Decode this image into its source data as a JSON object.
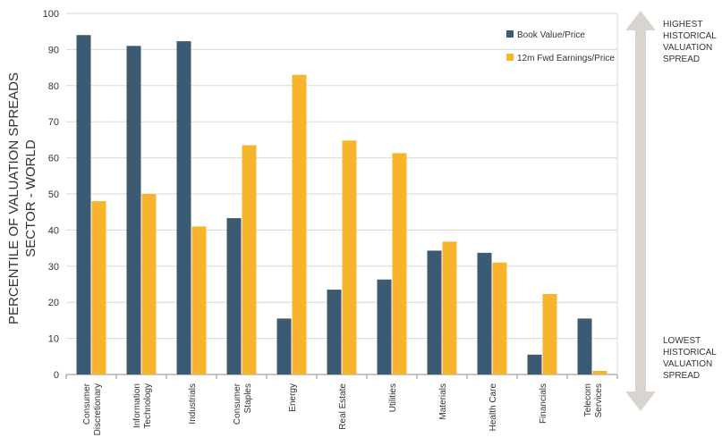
{
  "chart_data": {
    "type": "bar",
    "ylabel": [
      "PERCENTILE OF VALUATION SPREADS",
      "SECTOR - WORLD"
    ],
    "ylim": [
      0,
      100
    ],
    "yticks": [
      0,
      10,
      20,
      30,
      40,
      50,
      60,
      70,
      80,
      90,
      100
    ],
    "grid": true,
    "legend_position": "top-right",
    "categories": [
      [
        "Consumer",
        "Discretionary"
      ],
      [
        "Information",
        "Technology"
      ],
      [
        "Industrials"
      ],
      [
        "Consumer",
        "Staples"
      ],
      [
        "Energy"
      ],
      [
        "Real Estate"
      ],
      [
        "Utilities"
      ],
      [
        "Materials"
      ],
      [
        "Health Care"
      ],
      [
        "Financials"
      ],
      [
        "Telecom",
        "Services"
      ]
    ],
    "series": [
      {
        "name": "Book Value/Price",
        "color": "#3d5a73",
        "values": [
          94,
          91,
          92.3,
          43.3,
          15.5,
          23.5,
          26.3,
          34.3,
          33.7,
          5.5,
          15.5
        ]
      },
      {
        "name": "12m Fwd Earnings/Price",
        "color": "#f6b52d",
        "values": [
          48,
          50,
          41,
          63.5,
          83,
          64.8,
          61.3,
          36.8,
          31,
          22.3,
          1
        ]
      }
    ]
  },
  "side_arrow": {
    "top_label": [
      "HIGHEST",
      "HISTORICAL",
      "VALUATION",
      "SPREAD"
    ],
    "bottom_label": [
      "LOWEST",
      "HISTORICAL",
      "VALUATION",
      "SPREAD"
    ],
    "color": "#d9d4cd"
  }
}
